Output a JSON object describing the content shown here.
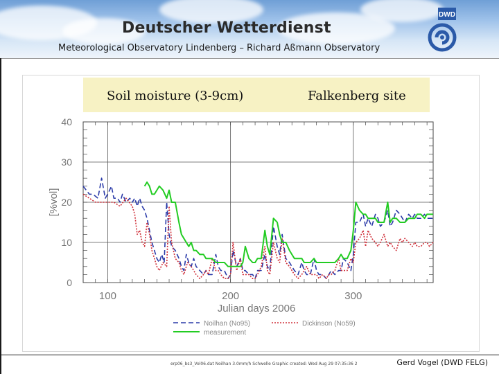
{
  "header": {
    "title": "Deutscher Wetterdienst",
    "subtitle": "Meteorological Observatory Lindenberg – Richard Aßmann Observatory",
    "logo_text": "DWD",
    "logo_color": "#2b5aa8"
  },
  "panel": {
    "title_left": "Soil moisture (3-9cm)",
    "title_right": "Falkenberg site",
    "title_background": "#f7f2c4"
  },
  "chart_data": {
    "type": "line",
    "xlabel": "Julian days 2006",
    "ylabel": "[%vol]",
    "xlim": [
      80,
      365
    ],
    "ylim": [
      0,
      40
    ],
    "xticks": [
      100,
      200,
      300
    ],
    "yticks": [
      0,
      10,
      20,
      30,
      40
    ],
    "grid": true,
    "legend_position": "bottom",
    "series": [
      {
        "name": "Noilhan (No95)",
        "color": "#2a3aa8",
        "style": "dashed",
        "x": [
          80,
          85,
          88,
          92,
          95,
          98,
          100,
          103,
          105,
          108,
          110,
          112,
          115,
          118,
          120,
          122,
          124,
          126,
          128,
          130,
          132,
          134,
          136,
          138,
          140,
          142,
          144,
          146,
          148,
          150,
          152,
          155,
          158,
          160,
          162,
          164,
          166,
          168,
          170,
          172,
          175,
          178,
          180,
          182,
          185,
          188,
          190,
          192,
          195,
          198,
          200,
          202,
          205,
          208,
          210,
          212,
          215,
          218,
          220,
          222,
          225,
          228,
          230,
          232,
          235,
          238,
          240,
          242,
          245,
          248,
          250,
          252,
          255,
          258,
          260,
          262,
          265,
          268,
          270,
          272,
          275,
          278,
          280,
          282,
          285,
          288,
          290,
          292,
          295,
          298,
          300,
          302,
          305,
          308,
          310,
          312,
          315,
          318,
          320,
          322,
          325,
          328,
          330,
          332,
          335,
          338,
          340,
          342,
          345,
          348,
          350,
          352,
          355,
          358,
          360,
          362,
          365
        ],
        "y": [
          24,
          22,
          22,
          21,
          26,
          21,
          22,
          24,
          21,
          21,
          20,
          22,
          20,
          21,
          20,
          21,
          19,
          21,
          19,
          18,
          16,
          13,
          10,
          8,
          6,
          5,
          7,
          5,
          20,
          12,
          9,
          8,
          6,
          4,
          3,
          7,
          5,
          4,
          6,
          4,
          3,
          2,
          3,
          2,
          2,
          7,
          4,
          3,
          3,
          1,
          2,
          8,
          4,
          6,
          3,
          3,
          2,
          2,
          1,
          3,
          3,
          7,
          4,
          3,
          14,
          9,
          7,
          12,
          6,
          5,
          4,
          3,
          2,
          5,
          3,
          2,
          2,
          6,
          3,
          2,
          2,
          1,
          2,
          3,
          2,
          3,
          3,
          6,
          5,
          3,
          7,
          15,
          15,
          17,
          14,
          16,
          14,
          17,
          16,
          14,
          15,
          18,
          14,
          15,
          18,
          17,
          16,
          15,
          17,
          16,
          17,
          16,
          16,
          17,
          16,
          16,
          16
        ]
      },
      {
        "name": "Dickinson (No59)",
        "color": "#d0303a",
        "style": "dotted",
        "x": [
          80,
          85,
          90,
          95,
          100,
          105,
          110,
          115,
          120,
          122,
          124,
          126,
          128,
          130,
          132,
          134,
          136,
          138,
          140,
          142,
          145,
          148,
          150,
          152,
          155,
          158,
          160,
          162,
          165,
          168,
          170,
          172,
          175,
          178,
          180,
          182,
          185,
          188,
          190,
          192,
          195,
          198,
          200,
          202,
          205,
          208,
          210,
          212,
          215,
          218,
          220,
          222,
          225,
          228,
          230,
          232,
          235,
          238,
          240,
          242,
          245,
          248,
          250,
          252,
          255,
          258,
          260,
          262,
          265,
          268,
          270,
          272,
          275,
          278,
          280,
          282,
          285,
          288,
          290,
          292,
          295,
          298,
          300,
          302,
          305,
          308,
          310,
          312,
          315,
          318,
          320,
          322,
          325,
          328,
          330,
          332,
          335,
          338,
          340,
          342,
          345,
          348,
          350,
          352,
          355,
          358,
          360,
          362,
          365
        ],
        "y": [
          22,
          21,
          20,
          20,
          20,
          20,
          19,
          21,
          19,
          17,
          12,
          13,
          10,
          9,
          15,
          12,
          8,
          6,
          4,
          3,
          5,
          4,
          19,
          10,
          6,
          5,
          3,
          2,
          5,
          4,
          3,
          2,
          1,
          2,
          3,
          2,
          6,
          3,
          3,
          2,
          1,
          1,
          2,
          10,
          3,
          6,
          2,
          2,
          2,
          1,
          1,
          2,
          4,
          9,
          3,
          2,
          10,
          6,
          5,
          11,
          5,
          4,
          3,
          2,
          1,
          2,
          3,
          4,
          2,
          2,
          2,
          1,
          2,
          1,
          2,
          2,
          3,
          6,
          3,
          3,
          3,
          6,
          5,
          10,
          11,
          13,
          9,
          13,
          11,
          10,
          9,
          10,
          12,
          9,
          10,
          9,
          8,
          11,
          10,
          11,
          10,
          9,
          10,
          9,
          9,
          10,
          10,
          9,
          10
        ]
      },
      {
        "name": "measurement",
        "color": "#22cc22",
        "style": "solid",
        "x": [
          130,
          132,
          134,
          136,
          138,
          140,
          142,
          145,
          148,
          150,
          152,
          155,
          158,
          160,
          162,
          164,
          166,
          168,
          170,
          172,
          175,
          178,
          180,
          182,
          185,
          188,
          190,
          192,
          195,
          198,
          200,
          202,
          205,
          208,
          210,
          212,
          215,
          218,
          220,
          222,
          225,
          228,
          230,
          232,
          235,
          238,
          240,
          242,
          245,
          248,
          250,
          252,
          255,
          258,
          260,
          262,
          265,
          268,
          270,
          272,
          275,
          278,
          280,
          282,
          285,
          288,
          290,
          292,
          295,
          298,
          300,
          302,
          305,
          308,
          310,
          312,
          315,
          318,
          320,
          322,
          325,
          328,
          330,
          332,
          335,
          338,
          340,
          342,
          345,
          348,
          350,
          352,
          355,
          358,
          360,
          362,
          365
        ],
        "y": [
          24,
          25,
          24,
          22,
          22,
          23,
          24,
          23,
          21,
          23,
          20,
          20,
          15,
          12,
          11,
          10,
          9,
          10,
          8,
          8,
          7,
          7,
          6,
          6,
          6,
          5,
          5,
          5,
          5,
          4,
          4,
          4,
          4,
          4,
          5,
          9,
          6,
          5,
          5,
          6,
          6,
          13,
          9,
          7,
          16,
          15,
          12,
          10,
          10,
          8,
          7,
          6,
          6,
          6,
          5,
          5,
          5,
          6,
          5,
          5,
          5,
          5,
          5,
          5,
          5,
          6,
          7,
          6,
          6,
          8,
          13,
          20,
          18,
          17,
          17,
          16,
          16,
          16,
          15,
          15,
          15,
          20,
          15,
          16,
          16,
          15,
          15,
          15,
          16,
          16,
          16,
          17,
          17,
          16,
          17,
          17,
          17
        ]
      }
    ]
  },
  "legend": {
    "noilhan": "Noilhan (No95)",
    "dickinson": "Dickinson (No59)",
    "measurement": "measurement"
  },
  "footer": {
    "credit": "erp06_bs3_Vol06.dat Noilhan 3.0mm/h Schwelle   Graphic created: Wed Aug 29 07:35:36 2",
    "author": "Gerd Vogel (DWD FELG)"
  }
}
